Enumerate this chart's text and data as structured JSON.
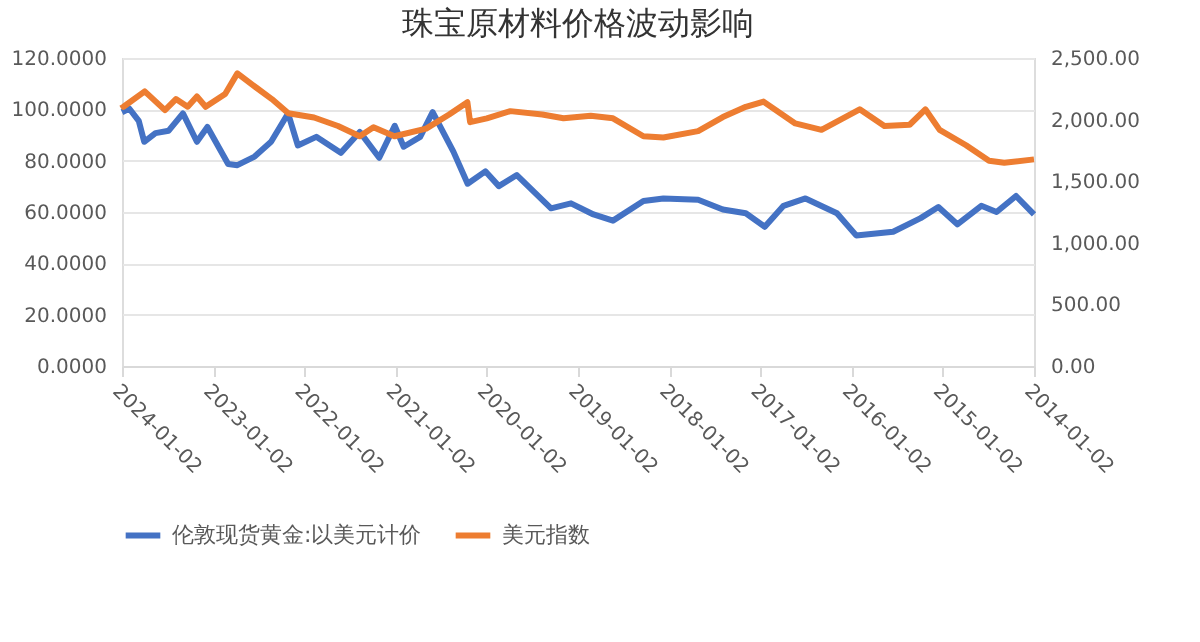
{
  "chart_data": {
    "type": "line",
    "title": "珠宝原材料价格波动影响",
    "xlim": [
      "2024-01-02",
      "2014-01-02"
    ],
    "xticks": [
      "2024-01-02",
      "2023-01-02",
      "2022-01-02",
      "2021-01-02",
      "2020-01-02",
      "2019-01-02",
      "2018-01-02",
      "2017-01-02",
      "2016-01-02",
      "2015-01-02",
      "2014-01-02"
    ],
    "ylim": [
      0,
      120
    ],
    "yticks": [
      {
        "value": 0,
        "label": "0.0000"
      },
      {
        "value": 20,
        "label": "20.0000"
      },
      {
        "value": 40,
        "label": "40.0000"
      },
      {
        "value": 60,
        "label": "60.0000"
      },
      {
        "value": 80,
        "label": "80.0000"
      },
      {
        "value": 100,
        "label": "100.0000"
      },
      {
        "value": 120,
        "label": "120.0000"
      }
    ],
    "y2lim": [
      0,
      2500
    ],
    "y2ticks": [
      {
        "value": 0,
        "label": "0.00"
      },
      {
        "value": 500,
        "label": "500.00"
      },
      {
        "value": 1000,
        "label": "1,000.00"
      },
      {
        "value": 1500,
        "label": "1,500.00"
      },
      {
        "value": 2000,
        "label": "2,000.00"
      },
      {
        "value": 2500,
        "label": "2,500.00"
      }
    ],
    "grid": "y",
    "legend": "bottom",
    "marker": "none",
    "line_style": "solid",
    "series": [
      {
        "name": "伦敦现货黄金:以美元计价",
        "color": "#4472c4",
        "axis": "y2",
        "x": [
          "2014-01-02",
          "2014-03-15",
          "2014-06-01",
          "2014-08-01",
          "2014-11-05",
          "2015-01-20",
          "2015-04-01",
          "2015-07-20",
          "2015-12-15",
          "2016-03-01",
          "2016-07-05",
          "2016-10-01",
          "2016-12-15",
          "2017-03-01",
          "2017-06-01",
          "2017-09-08",
          "2018-01-25",
          "2018-04-15",
          "2018-08-15",
          "2018-11-01",
          "2019-01-30",
          "2019-04-20",
          "2019-06-25",
          "2019-09-04",
          "2019-11-15",
          "2020-01-08",
          "2020-03-19",
          "2020-05-15",
          "2020-08-06",
          "2020-09-25",
          "2020-11-30",
          "2021-01-05",
          "2021-03-08",
          "2021-05-25",
          "2021-08-09",
          "2021-11-15",
          "2022-01-28",
          "2022-03-08",
          "2022-05-15",
          "2022-07-20",
          "2022-09-27",
          "2022-11-03",
          "2023-01-25",
          "2023-03-08",
          "2023-05-03",
          "2023-06-29",
          "2023-08-21",
          "2023-10-05",
          "2023-10-27",
          "2023-12-04",
          "2024-01-02"
        ],
        "values": [
          1230,
          1380,
          1250,
          1300,
          1150,
          1290,
          1200,
          1090,
          1060,
          1240,
          1360,
          1300,
          1130,
          1240,
          1270,
          1350,
          1360,
          1340,
          1180,
          1230,
          1320,
          1280,
          1410,
          1550,
          1460,
          1580,
          1480,
          1740,
          2060,
          1860,
          1780,
          1950,
          1690,
          1900,
          1730,
          1860,
          1790,
          2050,
          1820,
          1700,
          1630,
          1640,
          1940,
          1820,
          2050,
          1910,
          1890,
          1820,
          1990,
          2090,
          2060
        ]
      },
      {
        "name": "美元指数",
        "color": "#ed7d31",
        "axis": "y",
        "x": [
          "2014-01-02",
          "2014-05-01",
          "2014-07-01",
          "2014-10-01",
          "2015-01-15",
          "2015-03-13",
          "2015-05-15",
          "2015-08-24",
          "2015-12-01",
          "2016-05-02",
          "2016-08-15",
          "2016-12-20",
          "2017-03-01",
          "2017-06-01",
          "2017-09-08",
          "2018-01-25",
          "2018-04-15",
          "2018-08-15",
          "2018-11-12",
          "2019-03-01",
          "2019-05-25",
          "2019-09-30",
          "2020-01-02",
          "2020-03-09",
          "2020-03-20",
          "2020-06-01",
          "2020-09-01",
          "2021-01-06",
          "2021-03-31",
          "2021-05-25",
          "2021-08-20",
          "2021-11-24",
          "2022-03-07",
          "2022-05-12",
          "2022-07-14",
          "2022-09-27",
          "2022-11-15",
          "2023-02-01",
          "2023-03-08",
          "2023-04-14",
          "2023-05-31",
          "2023-07-14",
          "2023-10-03",
          "2023-12-27",
          "2024-01-02"
        ],
        "values": [
          80.5,
          79.2,
          80.0,
          86.0,
          92.0,
          100.0,
          94.0,
          93.5,
          100.0,
          92.0,
          94.5,
          103.0,
          101.0,
          97.0,
          91.5,
          89.0,
          89.5,
          96.5,
          97.5,
          96.5,
          98.0,
          99.3,
          96.5,
          95.0,
          102.8,
          98.0,
          92.5,
          89.5,
          93.0,
          89.5,
          93.5,
          96.8,
          98.5,
          104.0,
          108.5,
          114.0,
          106.0,
          101.0,
          105.0,
          101.0,
          104.0,
          99.7,
          107.0,
          101.0,
          102.0
        ]
      }
    ]
  }
}
